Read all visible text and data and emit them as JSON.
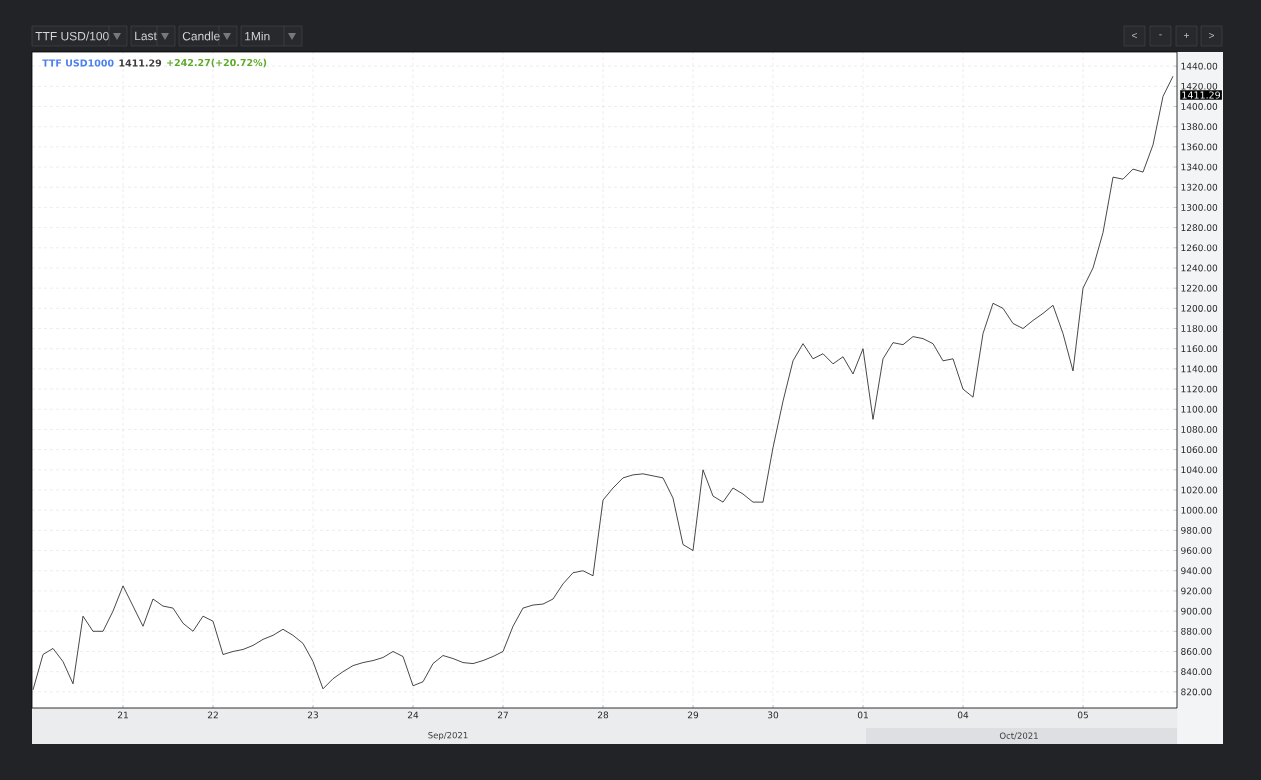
{
  "chart_data": {
    "type": "line",
    "title": "TTF USD1000",
    "subtitle": "1411.29",
    "annotations": [
      "TTF USD/100",
      "Last",
      "Candle",
      "1Min",
      "<",
      "-",
      "+",
      ">",
      "+242.27(+20.72%)",
      "Sep/2021",
      "Oct/2021",
      "1411.29"
    ],
    "categories": [
      null,
      null,
      null,
      null,
      null,
      null,
      null,
      null,
      null,
      "21",
      null,
      null,
      null,
      null,
      null,
      null,
      null,
      null,
      "22",
      null,
      null,
      null,
      null,
      null,
      null,
      null,
      null,
      null,
      "23",
      null,
      null,
      null,
      null,
      null,
      null,
      null,
      null,
      null,
      "24",
      null,
      null,
      null,
      null,
      null,
      null,
      null,
      null,
      "27",
      null,
      null,
      null,
      null,
      null,
      null,
      null,
      null,
      null,
      "28",
      null,
      null,
      null,
      null,
      null,
      null,
      null,
      null,
      "29",
      null,
      null,
      null,
      null,
      null,
      null,
      null,
      "30",
      null,
      null,
      null,
      null,
      null,
      null,
      null,
      null,
      "01",
      null,
      null,
      null,
      null,
      null,
      null,
      null,
      null,
      null,
      "04",
      null,
      null,
      null,
      null,
      null,
      null,
      null,
      null,
      null,
      null,
      null,
      "05",
      null,
      null,
      null,
      null,
      null,
      null,
      null,
      null,
      null
    ],
    "values": [
      822,
      857,
      863,
      850,
      828,
      895,
      880,
      880,
      900,
      925,
      905,
      885,
      912,
      905,
      903,
      888,
      880,
      895,
      890,
      857,
      860,
      862,
      866,
      872,
      876,
      882,
      876,
      868,
      850,
      823,
      833,
      840,
      846,
      849,
      851,
      854,
      860,
      855,
      826,
      830,
      848,
      856,
      853,
      849,
      848,
      851,
      855,
      860,
      885,
      903,
      906,
      907,
      912,
      927,
      938,
      940,
      935,
      1010,
      1022,
      1032,
      1035,
      1036,
      1034,
      1032,
      1012,
      966,
      960,
      1040,
      1014,
      1008,
      1022,
      1016,
      1008,
      1008,
      1062,
      1108,
      1148,
      1165,
      1150,
      1155,
      1145,
      1152,
      1135,
      1160,
      1090,
      1150,
      1166,
      1164,
      1172,
      1170,
      1165,
      1148,
      1150,
      1120,
      1112,
      1175,
      1205,
      1200,
      1185,
      1180,
      1188,
      1195,
      1203,
      1175,
      1138,
      1220,
      1240,
      1275,
      1330,
      1328,
      1338,
      1335,
      1362,
      1410,
      1430
    ],
    "color": "#1a1a1a",
    "line_style": "solid",
    "grid": true,
    "ylim": [
      804,
      1454
    ],
    "yticks": [
      {
        "value": 820,
        "label": "820.00"
      },
      {
        "value": 840,
        "label": "840.00"
      },
      {
        "value": 860,
        "label": "860.00"
      },
      {
        "value": 880,
        "label": "880.00"
      },
      {
        "value": 900,
        "label": "900.00"
      },
      {
        "value": 920,
        "label": "920.00"
      },
      {
        "value": 940,
        "label": "940.00"
      },
      {
        "value": 960,
        "label": "960.00"
      },
      {
        "value": 980,
        "label": "980.00"
      },
      {
        "value": 1000,
        "label": "1000.00"
      },
      {
        "value": 1020,
        "label": "1020.00"
      },
      {
        "value": 1040,
        "label": "1040.00"
      },
      {
        "value": 1060,
        "label": "1060.00"
      },
      {
        "value": 1080,
        "label": "1080.00"
      },
      {
        "value": 1100,
        "label": "1100.00"
      },
      {
        "value": 1120,
        "label": "1120.00"
      },
      {
        "value": 1140,
        "label": "1140.00"
      },
      {
        "value": 1160,
        "label": "1160.00"
      },
      {
        "value": 1180,
        "label": "1180.00"
      },
      {
        "value": 1200,
        "label": "1200.00"
      },
      {
        "value": 1220,
        "label": "1220.00"
      },
      {
        "value": 1240,
        "label": "1240.00"
      },
      {
        "value": 1260,
        "label": "1260.00"
      },
      {
        "value": 1280,
        "label": "1280.00"
      },
      {
        "value": 1300,
        "label": "1300.00"
      },
      {
        "value": 1320,
        "label": "1320.00"
      },
      {
        "value": 1340,
        "label": "1340.00"
      },
      {
        "value": 1360,
        "label": "1360.00"
      },
      {
        "value": 1380,
        "label": "1380.00"
      },
      {
        "value": 1400,
        "label": "1400.00"
      },
      {
        "value": 1420,
        "label": "1420.00"
      },
      {
        "value": 1440,
        "label": "1440.00"
      }
    ]
  }
}
